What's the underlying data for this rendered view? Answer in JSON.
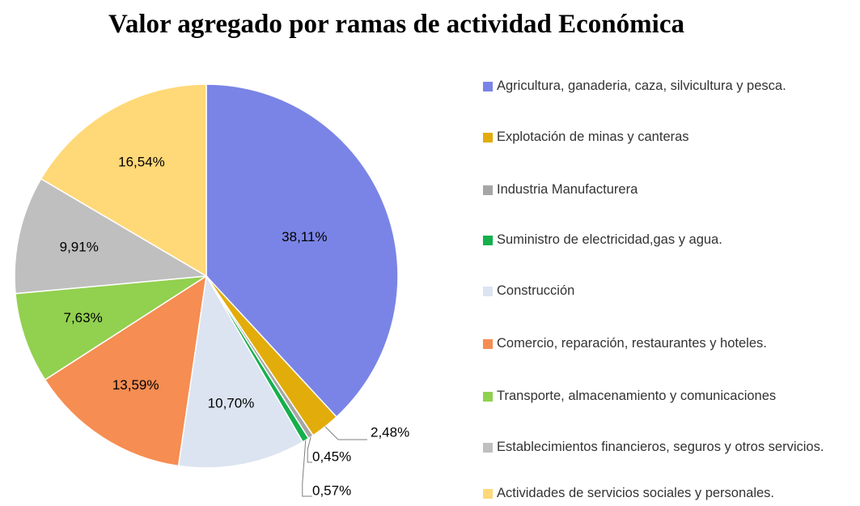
{
  "chart_data": {
    "type": "pie",
    "title": "Valor agregado por ramas de actividad Económica",
    "categories": [
      "Agricultura, ganaderia, caza, silvicultura y pesca.",
      "Explotación de minas y canteras",
      "Industria Manufacturera",
      "Suministro de electricidad,gas y agua.",
      "Construcción",
      "Comercio, reparación, restaurantes y hoteles.",
      "Transporte, almacenamiento y comunicaciones",
      "Establecimientos financieros, seguros y otros servicios.",
      "Actividades de servicios sociales y personales."
    ],
    "values": [
      38.11,
      2.48,
      0.45,
      0.57,
      10.7,
      13.59,
      7.63,
      9.91,
      16.54
    ],
    "value_labels": [
      "38,11%",
      "2,48%",
      "0,45%",
      "0,57%",
      "10,70%",
      "13,59%",
      "7,63%",
      "9,91%",
      "16,54%"
    ],
    "colors": [
      "#7a84e6",
      "#e2ac0a",
      "#a6a6a6",
      "#14b04c",
      "#dce4f2",
      "#f68d52",
      "#92d050",
      "#bfbfbf",
      "#ffd878"
    ],
    "legend": "right"
  }
}
